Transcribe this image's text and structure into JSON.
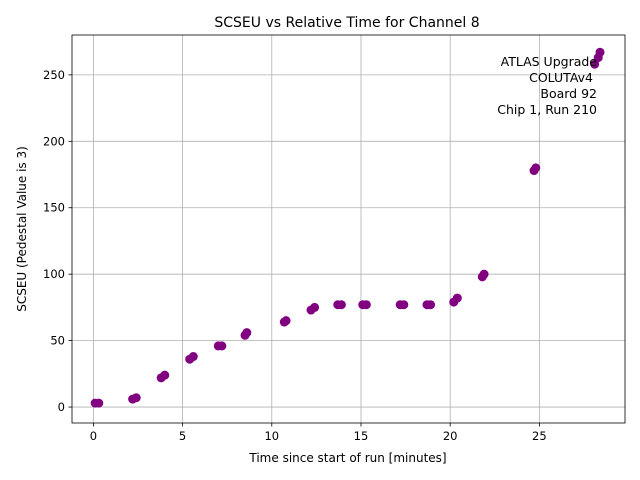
{
  "chart_data": {
    "type": "scatter",
    "title": "SCSEU vs Relative Time for Channel 8",
    "xlabel": "Time since start of run [minutes]",
    "ylabel": "SCSEU (Pedestal Value is 3)",
    "xlim": [
      -1.2,
      29.8
    ],
    "ylim": [
      -12,
      280
    ],
    "xticks": [
      0,
      5,
      10,
      15,
      20,
      25
    ],
    "xtick_labels": [
      "0",
      "5",
      "10",
      "15",
      "20",
      "25"
    ],
    "yticks": [
      0,
      50,
      100,
      150,
      200,
      250
    ],
    "ytick_labels": [
      "0",
      "50",
      "100",
      "150",
      "200",
      "250"
    ],
    "grid": true,
    "marker_color": "#800080",
    "annotation_lines": [
      "ATLAS Upgrade",
      "COLUTAv4",
      "Board 92",
      "Chip 1, Run 210"
    ],
    "series": [
      {
        "name": "Channel 8",
        "points": [
          [
            0.1,
            3
          ],
          [
            0.3,
            3
          ],
          [
            2.2,
            6
          ],
          [
            2.4,
            7
          ],
          [
            3.8,
            22
          ],
          [
            4.0,
            24
          ],
          [
            5.4,
            36
          ],
          [
            5.6,
            38
          ],
          [
            7.0,
            46
          ],
          [
            7.2,
            46
          ],
          [
            8.5,
            54
          ],
          [
            8.6,
            56
          ],
          [
            10.7,
            64
          ],
          [
            10.8,
            65
          ],
          [
            12.2,
            73
          ],
          [
            12.4,
            75
          ],
          [
            13.7,
            77
          ],
          [
            13.9,
            77
          ],
          [
            15.1,
            77
          ],
          [
            15.3,
            77
          ],
          [
            17.2,
            77
          ],
          [
            17.4,
            77
          ],
          [
            18.7,
            77
          ],
          [
            18.9,
            77
          ],
          [
            20.2,
            79
          ],
          [
            20.4,
            82
          ],
          [
            21.8,
            98
          ],
          [
            21.9,
            100
          ],
          [
            24.7,
            178
          ],
          [
            24.8,
            180
          ],
          [
            28.1,
            258
          ],
          [
            28.3,
            263
          ],
          [
            28.4,
            267
          ]
        ]
      }
    ]
  }
}
